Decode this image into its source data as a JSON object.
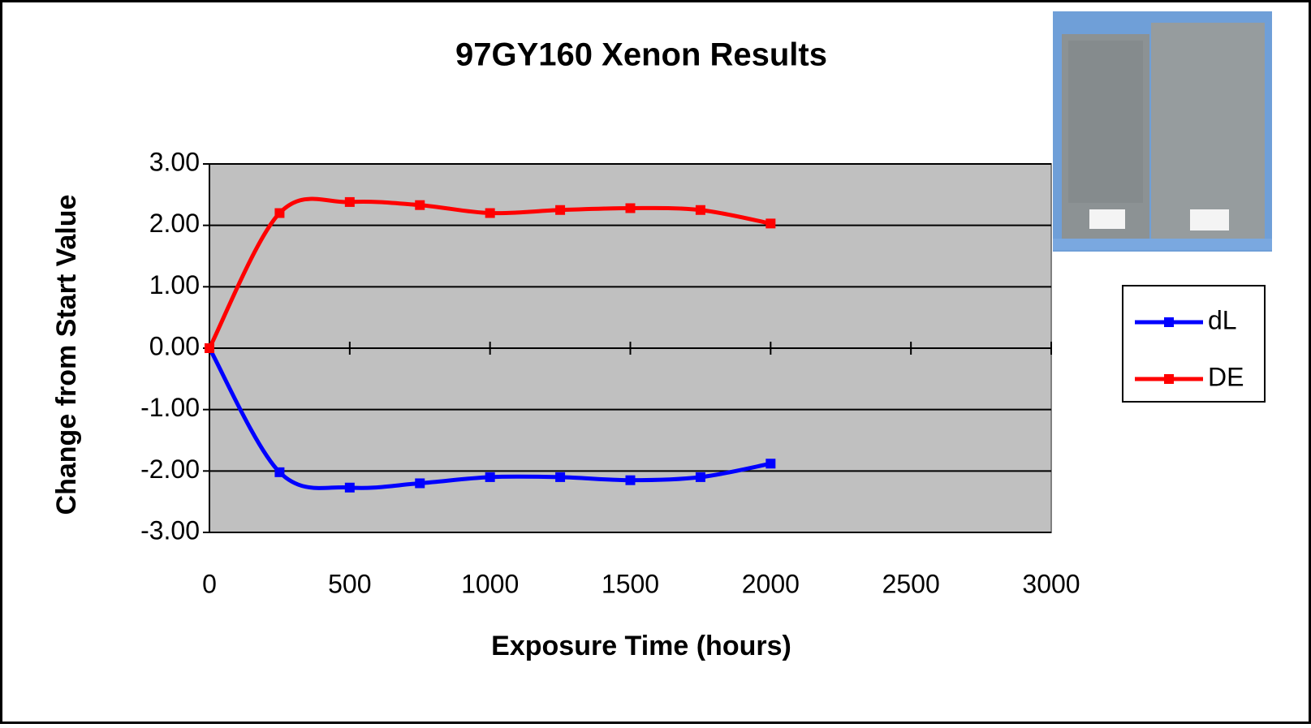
{
  "chart_data": {
    "type": "line",
    "title": "97GY160 Xenon Results",
    "x_label": "Exposure Time (hours)",
    "y_label": "Change from Start Value",
    "x": [
      0,
      250,
      500,
      750,
      1000,
      1250,
      1500,
      1750,
      2000
    ],
    "series": [
      {
        "name": "dL",
        "color": "#0000ff",
        "values": [
          0,
          -2.02,
          -2.27,
          -2.2,
          -2.1,
          -2.1,
          -2.15,
          -2.1,
          -1.88
        ]
      },
      {
        "name": "DE",
        "color": "#ff0000",
        "values": [
          0,
          2.2,
          2.38,
          2.33,
          2.2,
          2.25,
          2.28,
          2.25,
          2.03
        ]
      }
    ],
    "xlim": [
      0,
      3000
    ],
    "xticks": [
      0,
      500,
      1000,
      1500,
      2000,
      2500,
      3000
    ],
    "ylim": [
      -3,
      3
    ],
    "yticks": [
      {
        "value": -3,
        "label": "-3.00"
      },
      {
        "value": -2,
        "label": "-2.00"
      },
      {
        "value": -1,
        "label": "-1.00"
      },
      {
        "value": 0,
        "label": "0.00"
      },
      {
        "value": 1,
        "label": "1.00"
      },
      {
        "value": 2,
        "label": "2.00"
      },
      {
        "value": 3,
        "label": "3.00"
      }
    ],
    "grid": true,
    "legend": "right",
    "plot_background": "#c0c0c0"
  }
}
